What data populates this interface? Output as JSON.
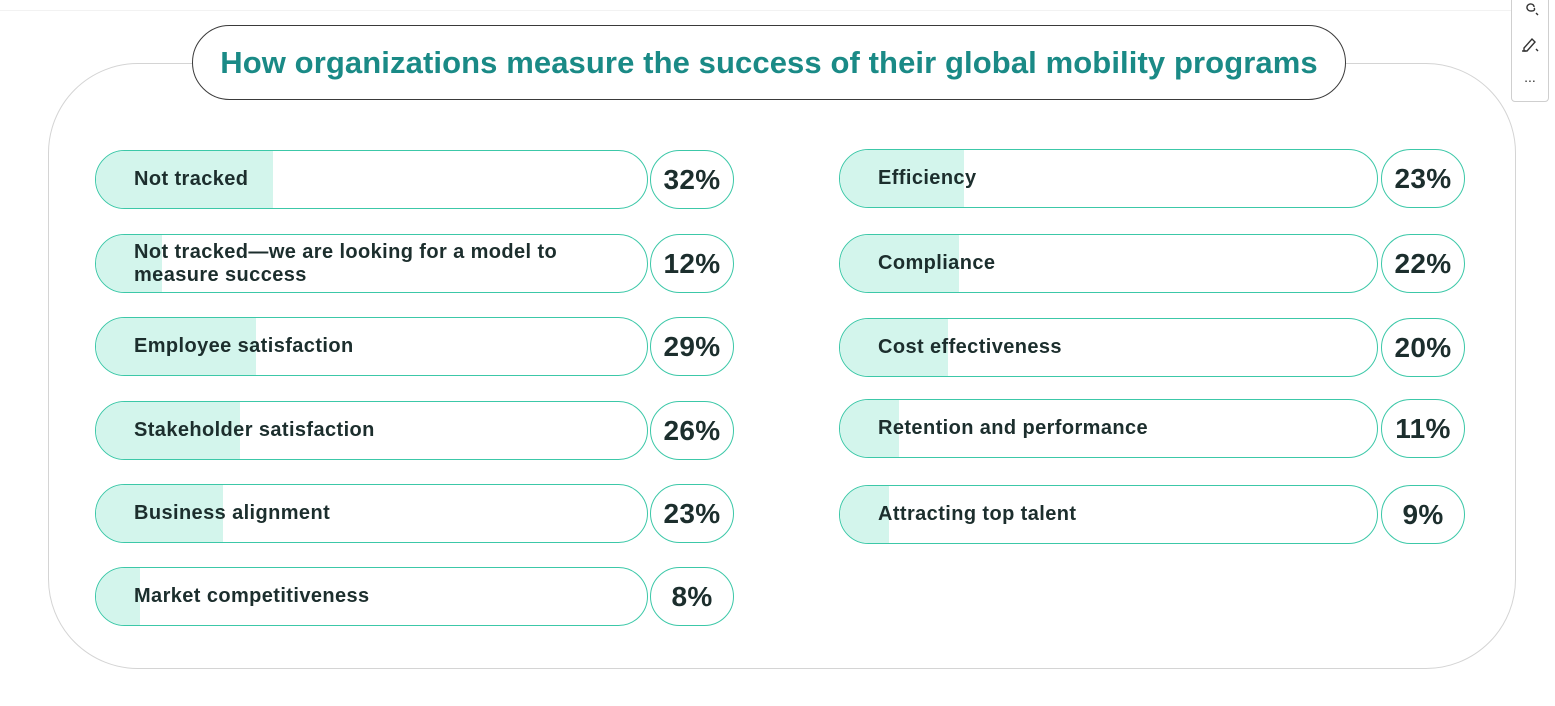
{
  "chart_data": {
    "type": "bar",
    "title": "How organizations measure the success of their global mobility programs",
    "categories": [
      "Not tracked",
      "Not tracked—we are looking for a model to measure success",
      "Employee satisfaction",
      "Stakeholder satisfaction",
      "Business alignment",
      "Market competitiveness",
      "Efficiency",
      "Compliance",
      "Cost effectiveness",
      "Retention and performance",
      "Attracting top talent"
    ],
    "values": [
      32,
      12,
      29,
      26,
      23,
      8,
      23,
      22,
      20,
      11,
      9
    ],
    "value_labels": [
      "32%",
      "12%",
      "29%",
      "26%",
      "23%",
      "8%",
      "23%",
      "22%",
      "20%",
      "11%",
      "9%"
    ],
    "xlabel": "",
    "ylabel": "",
    "xlim": [
      0,
      100
    ],
    "colors": {
      "fill": "#d3f5ec",
      "border": "#3cc8a8",
      "title": "#1a8a86",
      "text": "#1c2e2d"
    }
  },
  "toolbar": {
    "icons": [
      "loop-icon",
      "pen-icon"
    ],
    "more_label": "..."
  }
}
